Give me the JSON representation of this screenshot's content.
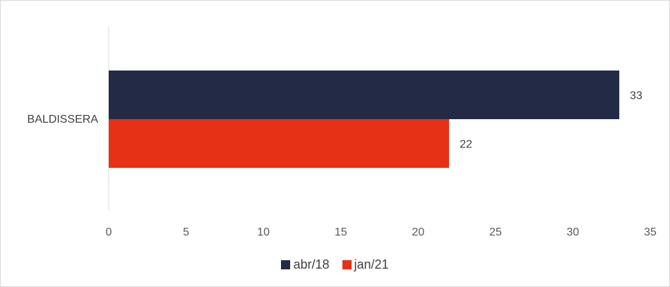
{
  "chart_data": {
    "type": "bar",
    "orientation": "horizontal",
    "categories": [
      "BALDISSERA"
    ],
    "series": [
      {
        "name": "abr/18",
        "values": [
          33
        ],
        "color": "#222a45"
      },
      {
        "name": "jan/21",
        "values": [
          22
        ],
        "color": "#e63117"
      }
    ],
    "xlim": [
      0,
      35
    ],
    "ticks": [
      0,
      5,
      10,
      15,
      20,
      25,
      30,
      35
    ],
    "tick_labels": [
      "0",
      "5",
      "10",
      "15",
      "20",
      "25",
      "30",
      "35"
    ],
    "data_labels": [
      "33",
      "22"
    ],
    "grid": false,
    "legend_position": "bottom"
  }
}
